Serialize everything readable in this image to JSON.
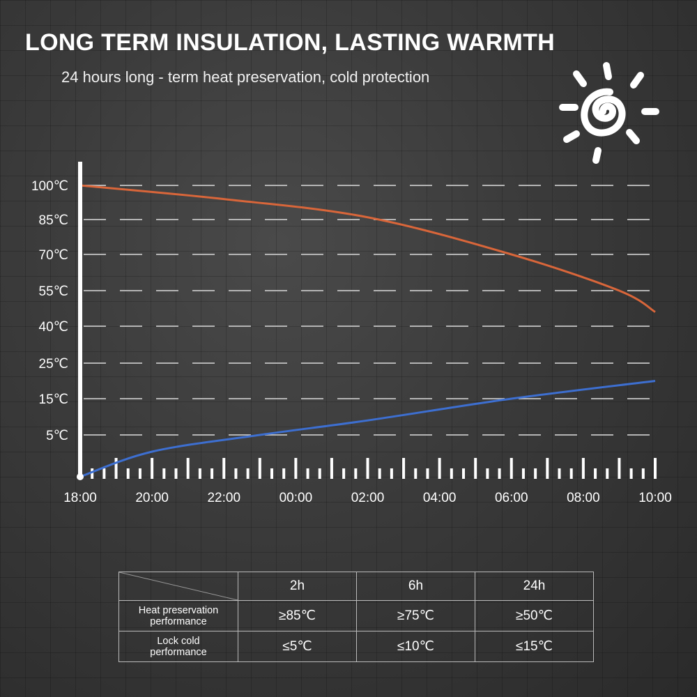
{
  "header": {
    "title": "LONG TERM INSULATION, LASTING WARMTH",
    "subtitle": "24 hours long - term heat preservation, cold protection"
  },
  "icons": {
    "sun": "sun-spiral-icon"
  },
  "chart_data": {
    "type": "line",
    "y_ticks": [
      {
        "label": "100℃",
        "value": 100
      },
      {
        "label": "85℃",
        "value": 85
      },
      {
        "label": "70℃",
        "value": 70
      },
      {
        "label": "55℃",
        "value": 55
      },
      {
        "label": "40℃",
        "value": 40
      },
      {
        "label": "25℃",
        "value": 25
      },
      {
        "label": "15℃",
        "value": 15
      },
      {
        "label": "5℃",
        "value": 5
      }
    ],
    "x_ticks": [
      "18:00",
      "20:00",
      "22:00",
      "00:00",
      "02:00",
      "04:00",
      "06:00",
      "08:00",
      "10:00"
    ],
    "x_range": [
      "18:00",
      "10:00"
    ],
    "grid": "dashed horizontal",
    "series": [
      {
        "color": "#d9663a",
        "points": [
          {
            "x": "18:00",
            "y": 100
          },
          {
            "x": "22:00",
            "y": 94
          },
          {
            "x": "02:00",
            "y": 86
          },
          {
            "x": "06:00",
            "y": 70
          },
          {
            "x": "09:00",
            "y": 55
          },
          {
            "x": "10:00",
            "y": 46
          }
        ]
      },
      {
        "color": "#3d6fd1",
        "points": [
          {
            "x": "18:00",
            "y": 0
          },
          {
            "x": "20:00",
            "y": 3
          },
          {
            "x": "23:00",
            "y": 5
          },
          {
            "x": "02:00",
            "y": 9
          },
          {
            "x": "06:00",
            "y": 15
          },
          {
            "x": "10:00",
            "y": 20
          }
        ]
      }
    ]
  },
  "table": {
    "columns": [
      "2h",
      "6h",
      "24h"
    ],
    "rows": [
      {
        "label_line1": "Heat preservation",
        "label_line2": "performance",
        "values": [
          "≥85℃",
          "≥75℃",
          "≥50℃"
        ]
      },
      {
        "label_line1": "Lock cold",
        "label_line2": "performance",
        "values": [
          "≤5℃",
          "≤10℃",
          "≤15℃"
        ]
      }
    ]
  }
}
